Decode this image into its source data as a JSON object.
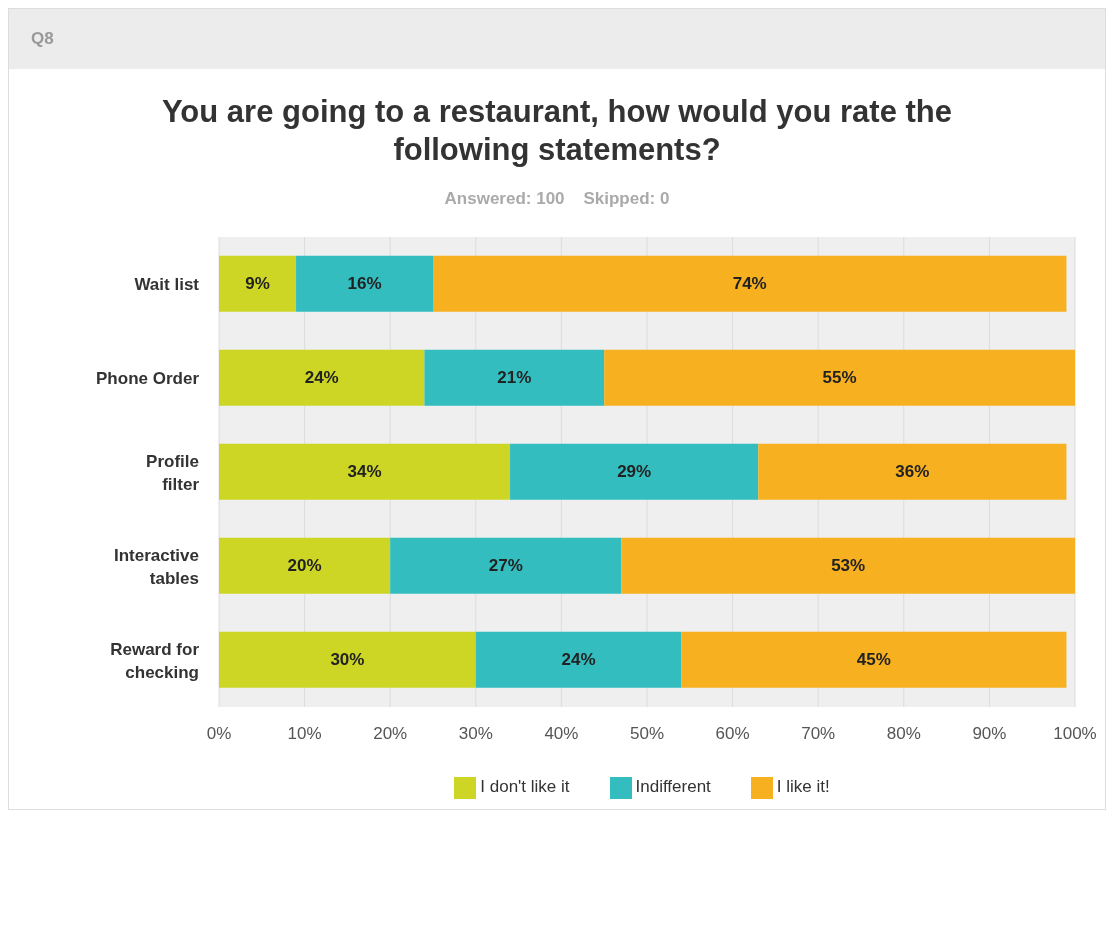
{
  "chart_data": {
    "type": "bar",
    "orientation": "horizontal",
    "stacked": true,
    "title": "You are going to a restaurant, how would you rate the following statements?",
    "subtitle": "Answered: 100    Skipped: 0",
    "annotations": [
      "Q8"
    ],
    "categories": [
      "Wait list",
      "Phone Order",
      "Profile filter",
      "Interactive tables",
      "Reward for checking"
    ],
    "series": [
      {
        "name": "I don't like it",
        "color": "#cdd625",
        "values": [
          9,
          24,
          34,
          20,
          30
        ],
        "value_labels": [
          "9%",
          "24%",
          "34%",
          "20%",
          "30%"
        ]
      },
      {
        "name": "Indifferent",
        "color": "#33bdbf",
        "values": [
          16,
          21,
          29,
          27,
          24
        ],
        "value_labels": [
          "16%",
          "21%",
          "29%",
          "27%",
          "24%"
        ]
      },
      {
        "name": "I like it!",
        "color": "#f6b020",
        "values": [
          74,
          55,
          36,
          53,
          45
        ],
        "value_labels": [
          "74%",
          "55%",
          "36%",
          "53%",
          "45%"
        ]
      }
    ],
    "xlim": [
      0,
      100
    ],
    "xticks": [
      {
        "value": 0,
        "label": "0%"
      },
      {
        "value": 10,
        "label": "10%"
      },
      {
        "value": 20,
        "label": "20%"
      },
      {
        "value": 30,
        "label": "30%"
      },
      {
        "value": 40,
        "label": "40%"
      },
      {
        "value": 50,
        "label": "50%"
      },
      {
        "value": 60,
        "label": "60%"
      },
      {
        "value": 70,
        "label": "70%"
      },
      {
        "value": 80,
        "label": "80%"
      },
      {
        "value": 90,
        "label": "90%"
      },
      {
        "value": 100,
        "label": "100%"
      }
    ],
    "grid": "x",
    "legend": "bottom"
  }
}
